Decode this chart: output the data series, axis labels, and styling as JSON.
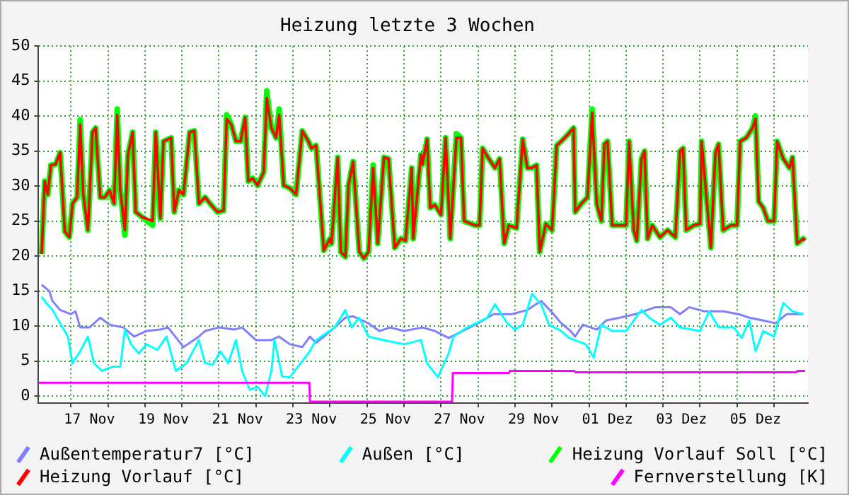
{
  "chart_data": {
    "type": "line",
    "title": "Heizung letzte 3 Wochen",
    "x": [
      "--11-16T05:00",
      "--11-16T07:00",
      "--11-16T09:00",
      "--11-16T11:00",
      "--11-16T14:00",
      "--11-16T17:00",
      "--11-16T20:00",
      "--11-16T23:00",
      "--11-17T01:00",
      "--11-17T04:00",
      "--11-17T06:00",
      "--11-17T08:00",
      "--11-17T11:00",
      "--11-17T12:00",
      "--11-17T14:00",
      "--11-17T16:00",
      "--11-17T19:00",
      "--11-17T22:00",
      "--11-18T01:00",
      "--11-18T04:00",
      "--11-18T06:00",
      "--11-18T08:00",
      "--11-18T11:00",
      "--11-18T13:00",
      "--11-18T16:00",
      "--11-18T18:00",
      "--11-18T22:00",
      "--11-19T05:00",
      "--11-19T07:00",
      "--11-19T10:00",
      "--11-19T12:00",
      "--11-19T17:00",
      "--11-19T19:00",
      "--11-19T22:00",
      "--11-20T01:00",
      "--11-20T05:00",
      "--11-20T08:00",
      "--11-20T11:00",
      "--11-20T15:00",
      "--11-20T19:00",
      "--11-20T23:00",
      "--11-21T03:00",
      "--11-21T05:00",
      "--11-21T08:00",
      "--11-21T11:00",
      "--11-21T14:00",
      "--11-21T17:00",
      "--11-21T19:00",
      "--11-21T22:00",
      "--11-22T01:00",
      "--11-22T05:00",
      "--11-22T07:00",
      "--11-22T10:00",
      "--11-22T13:00",
      "--11-22T15:00",
      "--11-22T18:00",
      "--11-22T22:00",
      "--11-23T02:00",
      "--11-23T06:00",
      "--11-23T10:00",
      "--11-23T12:00",
      "--11-23T15:00",
      "--11-23T20:00",
      "--11-24T00:00",
      "--11-24T01:00",
      "--11-24T05:00",
      "--11-24T07:00",
      "--11-24T10:00",
      "--11-24T12:00",
      "--11-24T15:00",
      "--11-24T19:00",
      "--11-24T22:00",
      "--11-25T01:00",
      "--11-25T04:00",
      "--11-25T07:00",
      "--11-25T11:00",
      "--11-25T14:00",
      "--11-25T18:00",
      "--11-25T22:00",
      "--11-26T01:00",
      "--11-26T05:00",
      "--11-26T06:00",
      "--11-26T11:00",
      "--11-26T12:00",
      "--11-26T15:00",
      "--11-26T17:00",
      "--11-26T20:00",
      "--11-27T00:00",
      "--11-27T03:00",
      "--11-27T06:00",
      "--11-27T10:00",
      "--11-27T13:00",
      "--11-27T15:00",
      "--11-27T22:00",
      "--11-28T01:00",
      "--11-28T03:00",
      "--11-28T07:00",
      "--11-28T11:00",
      "--11-28T14:00",
      "--11-28T17:00",
      "--11-28T20:00",
      "--11-29T01:00",
      "--11-29T05:00",
      "--11-29T08:00",
      "--11-29T11:00",
      "--11-29T14:00",
      "--11-29T16:00",
      "--11-29T20:00",
      "--11-30T00:00",
      "--11-30T03:00",
      "--11-30T06:00",
      "--11-30T10:00",
      "--11-30T14:00",
      "--11-30T15:00",
      "--11-30T19:00",
      "--11-30T23:00",
      "--12-01T02:00",
      "--12-01T05:00",
      "--12-01T08:00",
      "--12-01T10:00",
      "--12-01T12:00",
      "--12-01T15:00",
      "--12-01T20:00",
      "--12-02T00:00",
      "--12-02T02:00",
      "--12-02T05:00",
      "--12-02T07:00",
      "--12-02T10:00",
      "--12-02T12:00",
      "--12-02T14:00",
      "--12-02T17:00",
      "--12-02T22:00",
      "--12-03T03:00",
      "--12-03T08:00",
      "--12-03T11:00",
      "--12-03T13:00",
      "--12-03T15:00",
      "--12-03T20:00",
      "--12-04T00:00",
      "--12-04T01:00",
      "--12-04T05:00",
      "--12-04T07:00",
      "--12-04T10:00",
      "--12-04T12:00",
      "--12-04T15:00",
      "--12-04T20:00",
      "--12-05T00:00",
      "--12-05T02:00",
      "--12-05T06:00",
      "--12-05T10:00",
      "--12-05T12:00",
      "--12-05T14:00",
      "--12-05T17:00",
      "--12-05T20:00",
      "--12-06T00:00",
      "--12-06T02:00",
      "--12-06T06:00",
      "--12-06T10:00",
      "--12-06T12:00",
      "--12-06T15:00",
      "--12-06T19:00",
      "--12-06T20:00"
    ],
    "series": [
      {
        "name": "Außentemperatur7 [°C]",
        "color": "#8080ff",
        "x": [
          "--11-16T05:00",
          "--11-16T10:00",
          "--11-16T12:00",
          "--11-16T17:00",
          "--11-17T00:00",
          "--11-17T03:00",
          "--11-17T06:00",
          "--11-17T12:00",
          "--11-17T19:00",
          "--11-18T01:00",
          "--11-18T10:00",
          "--11-18T17:00",
          "--11-19T01:00",
          "--11-19T10:00",
          "--11-19T15:00",
          "--11-20T01:00",
          "--11-20T11:00",
          "--11-20T15:00",
          "--11-21T00:00",
          "--11-21T10:00",
          "--11-21T15:00",
          "--11-22T00:00",
          "--11-22T10:00",
          "--11-22T15:00",
          "--11-22T22:00",
          "--11-23T06:00",
          "--11-23T11:00",
          "--11-23T15:00",
          "--11-23T20:00",
          "--11-24T03:00",
          "--11-24T10:00",
          "--11-24T15:00",
          "--11-25T01:00",
          "--11-25T08:00",
          "--11-25T15:00",
          "--11-26T00:00",
          "--11-26T12:00",
          "--11-26T20:00",
          "--11-27T05:00",
          "--11-27T14:00",
          "--11-28T00:00",
          "--11-28T10:00",
          "--11-28T22:00",
          "--11-29T08:00",
          "--11-29T17:00",
          "--11-30T01:00",
          "--11-30T06:00",
          "--11-30T12:00",
          "--11-30T15:00",
          "--11-30T20:00",
          "--12-01T05:00",
          "--12-01T11:00",
          "--12-01T20:00",
          "--12-02T06:00",
          "--12-02T19:00",
          "--12-03T05:00",
          "--12-03T11:00",
          "--12-03T17:00",
          "--12-04T03:00",
          "--12-04T15:00",
          "--12-05T01:00",
          "--12-05T08:00",
          "--12-05T17:00",
          "--12-06T01:00",
          "--12-06T08:00",
          "--12-06T19:00"
        ],
        "values": [
          15.9,
          15,
          13.6,
          12.3,
          11.7,
          12.1,
          9.8,
          9.8,
          11.2,
          10.2,
          9.8,
          8.5,
          9.3,
          9.5,
          9.8,
          7,
          8.5,
          9.3,
          9.8,
          9.5,
          9.8,
          8,
          8,
          8.5,
          7.4,
          7,
          8.5,
          7.6,
          8.5,
          9.8,
          11.2,
          11.4,
          10.4,
          9.3,
          9.8,
          9.3,
          9.8,
          9.3,
          8.3,
          9.3,
          10.4,
          11.7,
          11.7,
          12.3,
          13.6,
          11.7,
          10.4,
          9.3,
          8.5,
          10.2,
          9.5,
          10.8,
          11.2,
          11.7,
          12.7,
          12.7,
          11.7,
          12.7,
          12.1,
          12.1,
          11.7,
          11.2,
          10.8,
          10.4,
          11.7,
          11.7
        ]
      },
      {
        "name": "Außen [°C]",
        "color": "#00ffff",
        "x": [
          "--11-16T05:00",
          "--11-16T08:00",
          "--11-16T12:00",
          "--11-16T17:00",
          "--11-16T22:00",
          "--11-17T01:00",
          "--11-17T06:00",
          "--11-17T11:00",
          "--11-17T15:00",
          "--11-17T20:00",
          "--11-18T03:00",
          "--11-18T08:00",
          "--11-18T11:00",
          "--11-18T15:00",
          "--11-18T20:00",
          "--11-19T01:00",
          "--11-19T08:00",
          "--11-19T14:00",
          "--11-19T20:00",
          "--11-20T03:00",
          "--11-20T11:00",
          "--11-20T15:00",
          "--11-20T20:00",
          "--11-21T01:00",
          "--11-21T06:00",
          "--11-21T11:00",
          "--11-21T15:00",
          "--11-21T20:00",
          "--11-22T01:00",
          "--11-22T06:00",
          "--11-22T10:00",
          "--11-22T12:00",
          "--11-22T17:00",
          "--11-22T22:00",
          "--11-23T05:00",
          "--11-23T10:00",
          "--11-23T15:00",
          "--11-24T03:00",
          "--11-24T10:00",
          "--11-24T14:00",
          "--11-24T19:00",
          "--11-25T01:00",
          "--11-25T11:00",
          "--11-26T00:00",
          "--11-26T11:00",
          "--11-26T15:00",
          "--11-26T22:00",
          "--11-27T05:00",
          "--11-27T08:00",
          "--11-27T17:00",
          "--11-28T06:00",
          "--11-28T11:00",
          "--11-28T19:00",
          "--11-29T00:00",
          "--11-29T05:00",
          "--11-29T11:00",
          "--11-29T17:00",
          "--11-29T22:00",
          "--11-30T06:00",
          "--11-30T11:00",
          "--11-30T22:00",
          "--12-01T03:00",
          "--12-01T08:00",
          "--12-01T15:00",
          "--12-02T00:00",
          "--12-02T10:00",
          "--12-02T15:00",
          "--12-02T22:00",
          "--12-03T05:00",
          "--12-03T11:00",
          "--12-04T00:00",
          "--12-04T06:00",
          "--12-04T12:00",
          "--12-04T22:00",
          "--12-05T03:00",
          "--12-05T08:00",
          "--12-05T12:00",
          "--12-05T17:00",
          "--12-06T00:00",
          "--12-06T06:00",
          "--12-06T12:00",
          "--12-06T19:00"
        ],
        "values": [
          14.2,
          13.3,
          12.3,
          10.4,
          8.5,
          4.7,
          6.4,
          8.5,
          4.7,
          3.6,
          4.2,
          4.2,
          9.5,
          7.4,
          6.1,
          7.4,
          6.6,
          8.5,
          3.6,
          4.7,
          8,
          4.7,
          4.5,
          6.4,
          4.7,
          8,
          3.6,
          0.9,
          1.3,
          0,
          3.6,
          8,
          2.8,
          2.7,
          4.7,
          6.1,
          8,
          9.8,
          12.3,
          9.8,
          11.2,
          8.5,
          8,
          7.4,
          8,
          4.7,
          2.7,
          6.1,
          8.5,
          9.8,
          11.2,
          13.1,
          10.4,
          9.5,
          10.2,
          14.6,
          13.1,
          10.2,
          9.3,
          8.3,
          7.4,
          5.5,
          10.2,
          9.3,
          9.3,
          12.3,
          11.2,
          10.2,
          11.2,
          9.8,
          9.3,
          12.1,
          9.8,
          9.8,
          8.3,
          10.8,
          6.4,
          9.3,
          8.5,
          13.3,
          12.1,
          11.7
        ]
      },
      {
        "name": "Heizung Vorlauf Soll [°C]",
        "color": "#00ff00",
        "values": [
          20.3,
          30.7,
          28.8,
          33,
          33.1,
          34.8,
          23.5,
          22.7,
          27.5,
          28.4,
          39.5,
          28.8,
          23.7,
          28.2,
          37.7,
          38.3,
          28.4,
          28.4,
          29.4,
          27.5,
          41,
          29.4,
          23,
          34.5,
          37.7,
          26.3,
          25.6,
          24.4,
          37.7,
          25.4,
          36.4,
          36.9,
          26.3,
          29.4,
          28.8,
          37.7,
          37.9,
          27.5,
          28.4,
          27.3,
          26.3,
          26.5,
          40.2,
          38.8,
          36.4,
          36.4,
          39.8,
          30.7,
          31.1,
          30.1,
          32,
          43.6,
          38.3,
          36.9,
          41,
          30.1,
          29.7,
          28.8,
          37.9,
          36.4,
          35.4,
          35.8,
          20.8,
          22.5,
          21.8,
          34.1,
          20.6,
          19.9,
          30.1,
          33.5,
          20.6,
          19.7,
          20.6,
          33,
          21.8,
          34.1,
          33.9,
          21.2,
          22.5,
          22.2,
          32.6,
          22.5,
          34.5,
          33.1,
          36.7,
          26.9,
          27.3,
          25.9,
          36.9,
          22.5,
          37.5,
          36.9,
          25,
          24.4,
          24.4,
          35.4,
          33.9,
          32.6,
          33.9,
          21.8,
          24.4,
          24,
          36.7,
          32.6,
          32.6,
          33,
          20.6,
          24.6,
          23.7,
          35.8,
          36.4,
          37.3,
          38.3,
          26.3,
          27.5,
          28.4,
          41,
          27.5,
          25,
          36,
          36.4,
          24.4,
          24.4,
          24.4,
          36.4,
          23.7,
          22.2,
          33.9,
          35,
          22.5,
          24.4,
          22.7,
          23.7,
          22.7,
          35,
          35.4,
          23.7,
          24.4,
          24.6,
          36.4,
          26.3,
          21.2,
          34.8,
          36,
          23.7,
          24.4,
          24.4,
          36.4,
          36.9,
          38.3,
          40,
          27.8,
          26.9,
          25,
          25,
          36.4,
          33.9,
          32.6,
          34.1,
          21.8,
          22.5,
          22.2
        ]
      },
      {
        "name": "Heizung Vorlauf [°C]",
        "color": "#ff0000",
        "values": [
          20.3,
          30.7,
          28.8,
          33,
          33.1,
          34.8,
          23.5,
          22.7,
          27.5,
          28.4,
          38.8,
          28.8,
          23.7,
          28.2,
          37.7,
          38.3,
          28.4,
          28.4,
          29.4,
          27.5,
          40.2,
          29.4,
          23.7,
          34.5,
          37.7,
          26.3,
          25.6,
          25,
          37.7,
          25.4,
          36.4,
          36.9,
          26.3,
          29.4,
          28.8,
          37.7,
          37.9,
          27.5,
          28.4,
          27.3,
          26.3,
          26.5,
          39.6,
          38.8,
          36.4,
          36.4,
          39.8,
          30.7,
          31.1,
          30.1,
          32,
          42.6,
          38.3,
          36.9,
          40.2,
          30.1,
          29.7,
          28.8,
          37.9,
          36.4,
          35.4,
          35.8,
          20.8,
          22.5,
          21.8,
          34.1,
          20.6,
          19.9,
          30.1,
          33.5,
          20.6,
          19.7,
          20.6,
          32.6,
          21.8,
          34.1,
          33.9,
          21.2,
          22.5,
          22.2,
          32.6,
          22.5,
          34.5,
          33.1,
          36.7,
          26.9,
          27.3,
          25.9,
          36.9,
          22.5,
          36.9,
          36.9,
          25,
          24.4,
          24.4,
          35.4,
          33.9,
          32.6,
          33.9,
          21.8,
          24.4,
          24,
          36.7,
          32.6,
          32.6,
          33,
          20.6,
          24.6,
          23.7,
          35.8,
          36.4,
          37.3,
          38.3,
          26.3,
          27.5,
          28.4,
          40.5,
          27.5,
          25,
          36,
          36.4,
          24.4,
          24.4,
          24.4,
          36.4,
          23.7,
          22.2,
          33.9,
          35,
          22.5,
          24.4,
          22.7,
          23.7,
          22.7,
          35,
          35.4,
          23.7,
          24.4,
          24.6,
          36.4,
          26.3,
          21.2,
          34.8,
          36,
          23.7,
          24.4,
          24.4,
          36.4,
          36.9,
          38.3,
          39.6,
          27.8,
          26.9,
          25,
          25,
          36.4,
          33.9,
          32.6,
          34.1,
          21.8,
          22.5,
          22.2
        ]
      },
      {
        "name": "Fernverstellung [K]",
        "color": "#ff00ff",
        "x": [
          "--11-16T03:00",
          "--11-23T10:34",
          "--11-23T11:02",
          "--11-27T07:12",
          "--11-27T07:41",
          "--11-28T20:10",
          "--11-28T20:38",
          "--11-30T14:24",
          "--11-30T15:22",
          "--12-06T14:24",
          "--12-06T15:22",
          "--12-06T20:10"
        ],
        "values": [
          1.9,
          1.9,
          -0.8,
          -0.8,
          3.3,
          3.3,
          3.6,
          3.6,
          3.4,
          3.4,
          3.6,
          3.6
        ]
      }
    ],
    "xlim": [
      "--11-16T03:00",
      "--12-06T22:00"
    ],
    "ylim": [
      -1,
      50
    ],
    "xticks": [
      {
        "value": "--11-17",
        "label": null
      },
      {
        "value": "--11-17T12:00",
        "label": "17 Nov"
      },
      {
        "value": "--11-18",
        "label": null
      },
      {
        "value": "--11-19",
        "label": null
      },
      {
        "value": "--11-19T12:00",
        "label": "19 Nov"
      },
      {
        "value": "--11-20",
        "label": null
      },
      {
        "value": "--11-21",
        "label": null
      },
      {
        "value": "--11-21T12:00",
        "label": "21 Nov"
      },
      {
        "value": "--11-22",
        "label": null
      },
      {
        "value": "--11-23",
        "label": null
      },
      {
        "value": "--11-23T12:00",
        "label": "23 Nov"
      },
      {
        "value": "--11-24",
        "label": null
      },
      {
        "value": "--11-25",
        "label": null
      },
      {
        "value": "--11-25T12:00",
        "label": "25 Nov"
      },
      {
        "value": "--11-26",
        "label": null
      },
      {
        "value": "--11-27",
        "label": null
      },
      {
        "value": "--11-27T12:00",
        "label": "27 Nov"
      },
      {
        "value": "--11-28",
        "label": null
      },
      {
        "value": "--11-29",
        "label": null
      },
      {
        "value": "--11-29T12:00",
        "label": "29 Nov"
      },
      {
        "value": "--11-30",
        "label": null
      },
      {
        "value": "--12-01",
        "label": null
      },
      {
        "value": "--12-01T12:00",
        "label": "01 Dez"
      },
      {
        "value": "--12-02",
        "label": null
      },
      {
        "value": "--12-03",
        "label": null
      },
      {
        "value": "--12-03T12:00",
        "label": "03 Dez"
      },
      {
        "value": "--12-04",
        "label": null
      },
      {
        "value": "--12-05",
        "label": null
      },
      {
        "value": "--12-05T12:00",
        "label": "05 Dez"
      },
      {
        "value": "--12-06",
        "label": null
      }
    ],
    "yticks": [
      0,
      5,
      10,
      15,
      20,
      25,
      30,
      35,
      40,
      45,
      50
    ],
    "grid": true,
    "legend": "bottom",
    "marker": "none",
    "line_style": "solid"
  }
}
